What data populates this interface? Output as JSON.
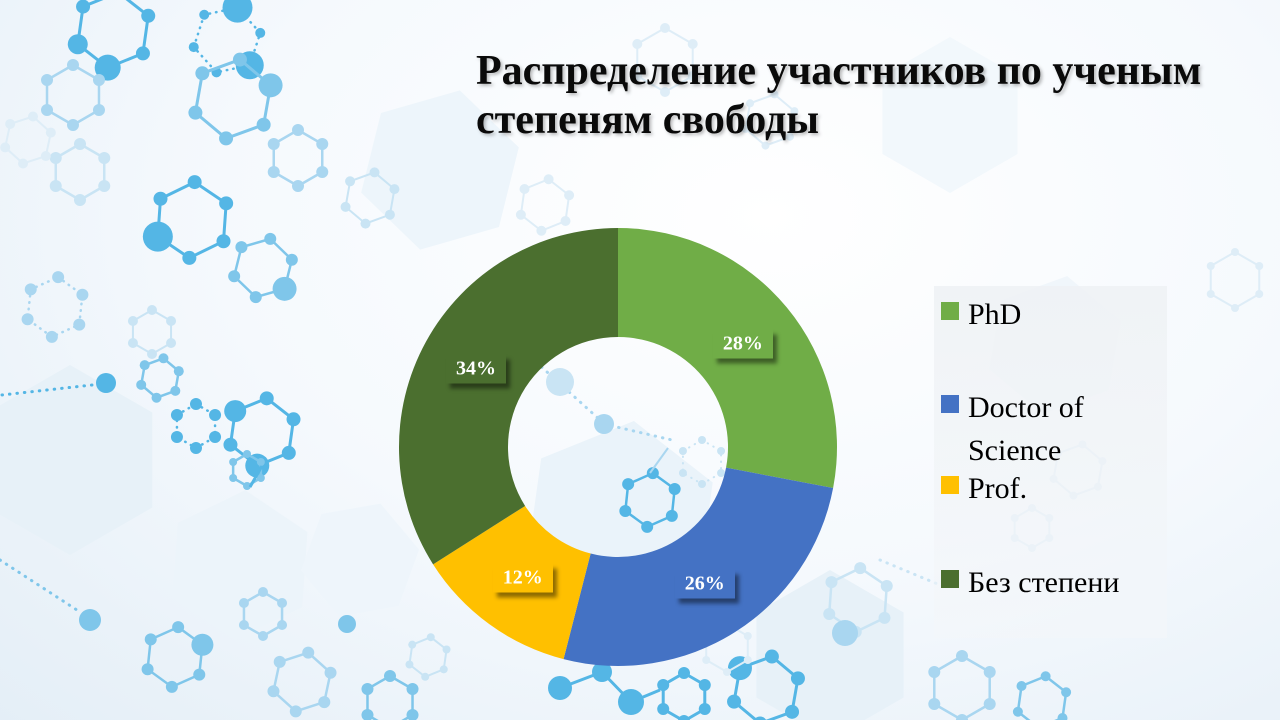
{
  "slide": {
    "title": "Распределение участников по ученым степеням свободы"
  },
  "chart_data": {
    "type": "pie",
    "subtype": "donut",
    "title": "Распределение участников по ученым степеням свободы",
    "categories": [
      "PhD",
      "Doctor of Science",
      "Prof.",
      "Без степени"
    ],
    "values": [
      28,
      26,
      12,
      34
    ],
    "labels": [
      "28%",
      "26%",
      "12%",
      "34%"
    ],
    "colors": [
      "#70AD47",
      "#4472C4",
      "#FFC000",
      "#4B6F2F"
    ],
    "unit": "percent",
    "start_angle_deg": 0,
    "direction": "clockwise",
    "donut_hole_ratio": 0.5,
    "legend_position": "right",
    "data_label_style": "white bold serif on slice-colored box with drop shadow"
  },
  "legend": {
    "items": [
      {
        "label": "PhD",
        "color": "#70AD47"
      },
      {
        "label": "Doctor of Science",
        "color": "#4472C4"
      },
      {
        "label": "Prof.",
        "color": "#FFC000"
      },
      {
        "label": "Без степени",
        "color": "#4B6F2F"
      }
    ]
  },
  "background": {
    "style": "light science slide background with molecule hexagon pattern",
    "molecule_color": "#54B6E5",
    "base_colors": [
      "#ffffff",
      "#e2edf6"
    ]
  }
}
